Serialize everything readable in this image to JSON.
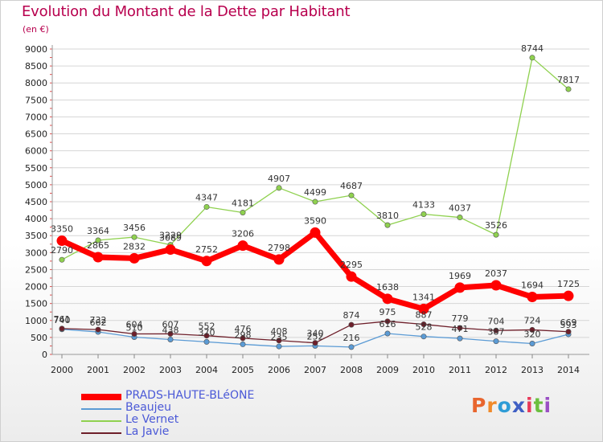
{
  "header": {
    "title": "Evolution du Montant de la Dette par Habitant",
    "unit": "(en €)"
  },
  "chart_data": {
    "type": "line",
    "title": "Evolution du Montant de la Dette par Habitant",
    "subtitle": "(en €)",
    "xlabel": "",
    "ylabel": "",
    "categories": [
      "2000",
      "2001",
      "2002",
      "2003",
      "2004",
      "2005",
      "2006",
      "2007",
      "2008",
      "2009",
      "2010",
      "2011",
      "2012",
      "2013",
      "2014"
    ],
    "yticks": [
      "0",
      "500",
      "1000",
      "1500",
      "2000",
      "2500",
      "3000",
      "3500",
      "4000",
      "4500",
      "5000",
      "5500",
      "6000",
      "6500",
      "7000",
      "7500",
      "8000",
      "8500",
      "9000"
    ],
    "ylim": [
      0,
      9000
    ],
    "legend_position": "bottom-left",
    "series": [
      {
        "name": "PRADS-HAUTE-BLéONE",
        "color": "#ff0000",
        "values": [
          3350,
          2865,
          2832,
          3089,
          2752,
          3206,
          2798,
          3590,
          2295,
          1638,
          1341,
          1969,
          2037,
          1694,
          1725
        ]
      },
      {
        "name": "Beaujeu",
        "color": "#5b9bd5",
        "values": [
          740,
          662,
          510,
          438,
          370,
          298,
          235,
          252,
          216,
          616,
          528,
          471,
          387,
          320,
          593
        ]
      },
      {
        "name": "Le Vernet",
        "color": "#8fd14f",
        "values": [
          2790,
          3364,
          3456,
          3229,
          4347,
          4181,
          4907,
          4499,
          4687,
          3810,
          4133,
          4037,
          3526,
          8744,
          7817
        ]
      },
      {
        "name": "La Javie",
        "color": "#6e1f2a",
        "values": [
          761,
          732,
          604,
          607,
          552,
          476,
          408,
          340,
          874,
          975,
          887,
          779,
          704,
          724,
          669
        ]
      }
    ]
  },
  "logo": {
    "text": "Proxiti"
  }
}
